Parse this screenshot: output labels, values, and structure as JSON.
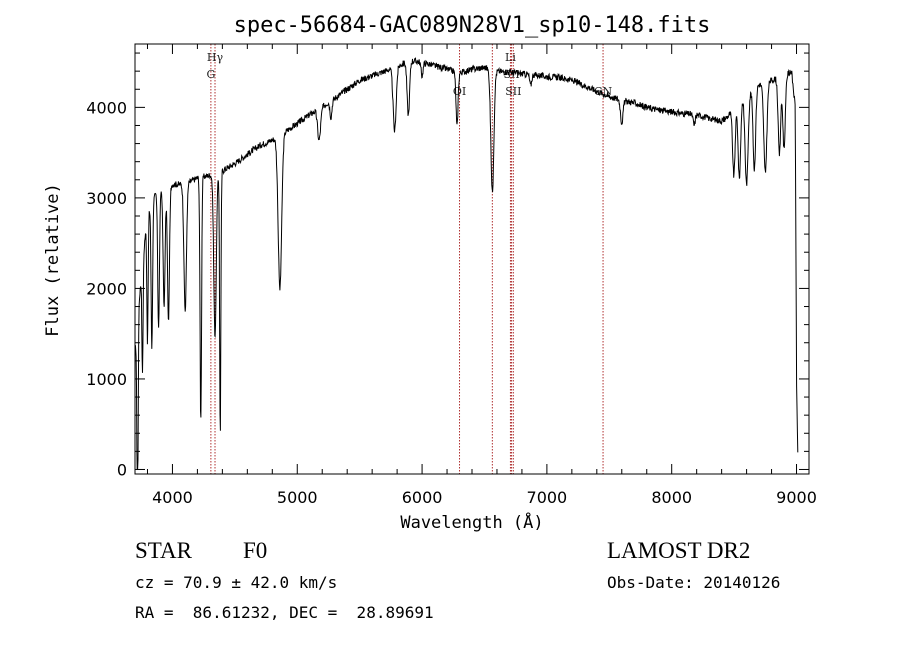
{
  "chart_data": {
    "type": "line",
    "title": "spec-56684-GAC089N28V1_sp10-148.fits",
    "xlabel": "Wavelength (Å)",
    "ylabel": "Flux (relative)",
    "xlim": [
      3700,
      9100
    ],
    "ylim": [
      -50,
      4700
    ],
    "x_ticks": [
      4000,
      5000,
      6000,
      7000,
      8000,
      9000
    ],
    "y_ticks": [
      0,
      1000,
      2000,
      3000,
      4000
    ],
    "x_minor_step": 200,
    "y_minor_step": 200,
    "grid": false,
    "line_color": "#000000",
    "marker_color": "#b03030",
    "spectral_lines": [
      {
        "wavelength": 4308,
        "label": "G",
        "label_row": 2
      },
      {
        "wavelength": 4341,
        "label": "Hγ",
        "label_row": 1
      },
      {
        "wavelength": 6300,
        "label": "OI",
        "label_row": 3
      },
      {
        "wavelength": 6563,
        "label": "",
        "label_row": 1
      },
      {
        "wavelength": 6708,
        "label": "Li",
        "label_row": 1
      },
      {
        "wavelength": 6717,
        "label": "SII",
        "label_row": 2
      },
      {
        "wavelength": 6731,
        "label": "SII",
        "label_row": 3
      },
      {
        "wavelength": 7450,
        "label": "CN",
        "label_row": 3
      }
    ],
    "continuum": [
      [
        3700,
        1300
      ],
      [
        3760,
        2300
      ],
      [
        3800,
        2800
      ],
      [
        3850,
        3000
      ],
      [
        3900,
        3100
      ],
      [
        4000,
        3150
      ],
      [
        4100,
        3150
      ],
      [
        4200,
        3220
      ],
      [
        4300,
        3250
      ],
      [
        4400,
        3300
      ],
      [
        4500,
        3380
      ],
      [
        4600,
        3480
      ],
      [
        4700,
        3580
      ],
      [
        4800,
        3640
      ],
      [
        4900,
        3730
      ],
      [
        5000,
        3820
      ],
      [
        5100,
        3920
      ],
      [
        5200,
        4010
      ],
      [
        5300,
        4100
      ],
      [
        5400,
        4200
      ],
      [
        5500,
        4300
      ],
      [
        5600,
        4350
      ],
      [
        5700,
        4400
      ],
      [
        5800,
        4450
      ],
      [
        5900,
        4520
      ],
      [
        6000,
        4500
      ],
      [
        6100,
        4460
      ],
      [
        6200,
        4420
      ],
      [
        6300,
        4380
      ],
      [
        6400,
        4420
      ],
      [
        6500,
        4440
      ],
      [
        6600,
        4400
      ],
      [
        6700,
        4390
      ],
      [
        6800,
        4370
      ],
      [
        6900,
        4360
      ],
      [
        7000,
        4340
      ],
      [
        7100,
        4330
      ],
      [
        7200,
        4300
      ],
      [
        7300,
        4240
      ],
      [
        7400,
        4180
      ],
      [
        7500,
        4120
      ],
      [
        7600,
        4080
      ],
      [
        7700,
        4050
      ],
      [
        7800,
        4000
      ],
      [
        7900,
        3970
      ],
      [
        8000,
        3950
      ],
      [
        8100,
        3930
      ],
      [
        8200,
        3920
      ],
      [
        8300,
        3880
      ],
      [
        8400,
        3850
      ],
      [
        8450,
        3900
      ],
      [
        8500,
        4000
      ],
      [
        8600,
        4150
      ],
      [
        8700,
        4250
      ],
      [
        8800,
        4300
      ],
      [
        8900,
        4350
      ],
      [
        8960,
        4400
      ],
      [
        8990,
        4000
      ],
      [
        9000,
        1000
      ],
      [
        9010,
        200
      ]
    ],
    "absorption": [
      [
        3720,
        2200,
        5
      ],
      [
        3760,
        1200,
        5
      ],
      [
        3800,
        1400,
        5
      ],
      [
        3835,
        1600,
        6
      ],
      [
        3889,
        1500,
        7
      ],
      [
        3933,
        1300,
        8
      ],
      [
        3968,
        1500,
        8
      ],
      [
        4102,
        1400,
        10
      ],
      [
        4227,
        2700,
        6
      ],
      [
        4341,
        1800,
        10
      ],
      [
        4383,
        2900,
        5
      ],
      [
        4861,
        1700,
        14
      ],
      [
        5175,
        350,
        12
      ],
      [
        5270,
        180,
        8
      ],
      [
        5780,
        700,
        12
      ],
      [
        5890,
        600,
        10
      ],
      [
        6000,
        150,
        8
      ],
      [
        6280,
        600,
        8
      ],
      [
        6563,
        1350,
        12
      ],
      [
        6870,
        120,
        8
      ],
      [
        7600,
        250,
        10
      ],
      [
        8180,
        120,
        8
      ],
      [
        8498,
        750,
        10
      ],
      [
        8542,
        850,
        10
      ],
      [
        8600,
        1000,
        12
      ],
      [
        8662,
        900,
        10
      ],
      [
        8750,
        1000,
        12
      ],
      [
        8863,
        850,
        10
      ],
      [
        8900,
        800,
        10
      ]
    ]
  },
  "info": {
    "class_label": "STAR",
    "subclass_label": "F0",
    "cz_text": "cz = 70.9 ± 42.0 km/s",
    "coords_text": "RA =  86.61232, DEC =  28.89691",
    "survey": "LAMOST DR2",
    "obs_date_text": "Obs-Date: 20140126"
  }
}
